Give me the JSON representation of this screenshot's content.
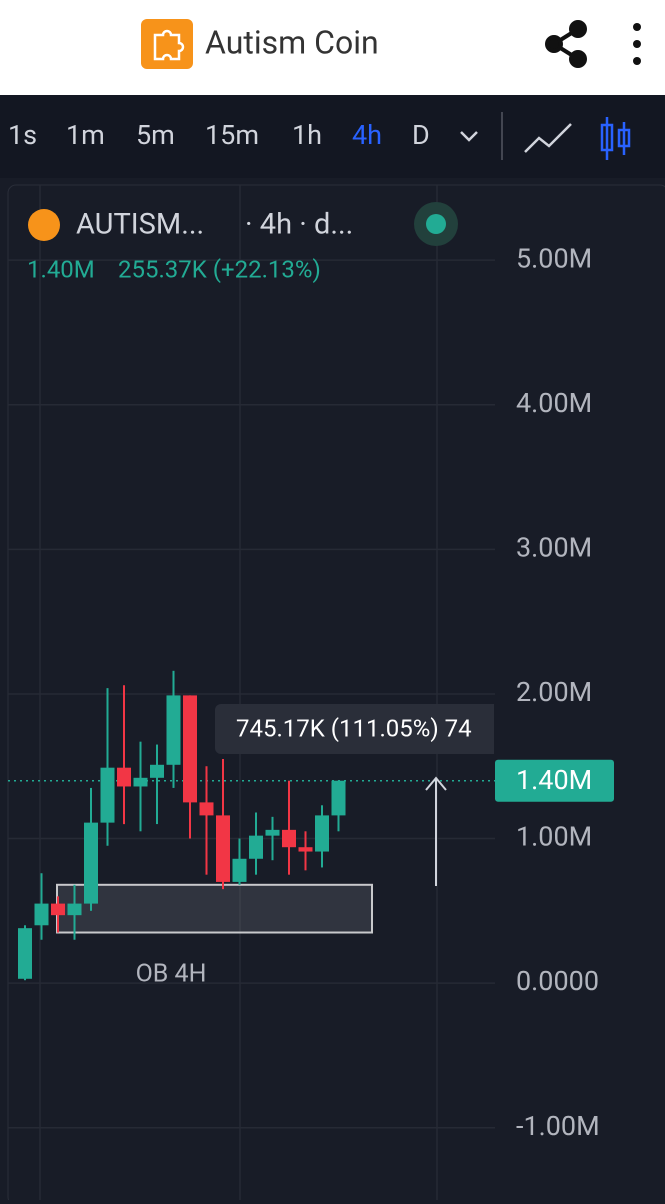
{
  "header": {
    "title": "Autism Coin"
  },
  "toolbar": {
    "intervals": [
      "1s",
      "1m",
      "5m",
      "15m",
      "1h",
      "4h",
      "D"
    ],
    "active": 5
  },
  "legend": {
    "symbol": "AUTISM...",
    "details": "· 4h · d...",
    "price": "1.40M",
    "change": "255.37K (+22.13%)"
  },
  "chart_data": {
    "type": "candlestick",
    "up_color": "#22ab94",
    "down_color": "#f23645",
    "open": [
      30000,
      400000,
      550000,
      470000,
      550000,
      1110000,
      1490000,
      1360000,
      1420000,
      1510000,
      1990000,
      1250000,
      1160000,
      700000,
      860000,
      1020000,
      1060000,
      940000,
      910000,
      1160000
    ],
    "high": [
      400000,
      760000,
      600000,
      680000,
      1350000,
      2040000,
      2060000,
      1670000,
      1650000,
      2160000,
      1990000,
      1500000,
      1550000,
      1000000,
      1180000,
      1150000,
      1400000,
      1050000,
      1230000,
      1400000
    ],
    "low": [
      20000,
      300000,
      350000,
      300000,
      500000,
      950000,
      1100000,
      1050000,
      1100000,
      1350000,
      1000000,
      750000,
      650000,
      680000,
      750000,
      850000,
      750000,
      780000,
      800000,
      1050000
    ],
    "close": [
      380000,
      550000,
      470000,
      550000,
      1110000,
      1490000,
      1360000,
      1420000,
      1510000,
      1990000,
      1250000,
      1160000,
      700000,
      860000,
      1020000,
      1060000,
      940000,
      910000,
      1160000,
      1400000
    ],
    "ylim": [
      -1500000,
      5520000
    ],
    "yticks": [
      {
        "value": 5000000,
        "label": "5.00M"
      },
      {
        "value": 4000000,
        "label": "4.00M"
      },
      {
        "value": 3000000,
        "label": "3.00M"
      },
      {
        "value": 2000000,
        "label": "2.00M"
      },
      {
        "value": 1000000,
        "label": "1.00M"
      },
      {
        "value": 0,
        "label": "0.0000"
      },
      {
        "value": -1000000,
        "label": "-1.00M"
      }
    ],
    "grid": true,
    "last_price": {
      "value": 1400000,
      "label": "1.40M"
    },
    "zone": {
      "label": "OB 4H",
      "top": 680000,
      "bottom": 350000
    },
    "measure": {
      "text": "745.17K (111.05%) 74"
    }
  }
}
